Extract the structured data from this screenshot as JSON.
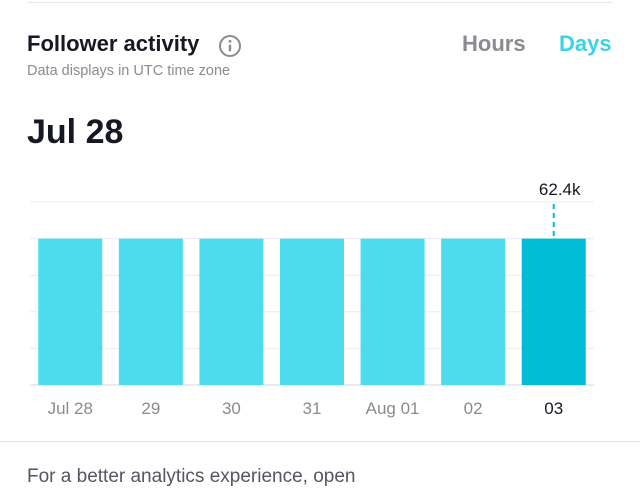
{
  "header": {
    "title": "Follower activity",
    "subtitle": "Data displays in UTC time zone"
  },
  "tabs": [
    {
      "label": "Hours",
      "active": false
    },
    {
      "label": "Days",
      "active": true
    }
  ],
  "selected_date": "Jul 28",
  "footer_text": "For a better analytics experience, open",
  "colors": {
    "accent": "#3ad3e8",
    "bar": "#4cdcee",
    "bar_selected": "#00bcd4"
  },
  "chart_data": {
    "type": "bar",
    "categories": [
      "Jul 28",
      "29",
      "30",
      "31",
      "Aug 01",
      "02",
      "03"
    ],
    "values": [
      62.4,
      62.4,
      62.4,
      62.4,
      62.4,
      62.4,
      62.4
    ],
    "unit": "k",
    "ylim": [
      0,
      78
    ],
    "grid": true,
    "selected_index": 6,
    "selected_label": "62.4k"
  }
}
